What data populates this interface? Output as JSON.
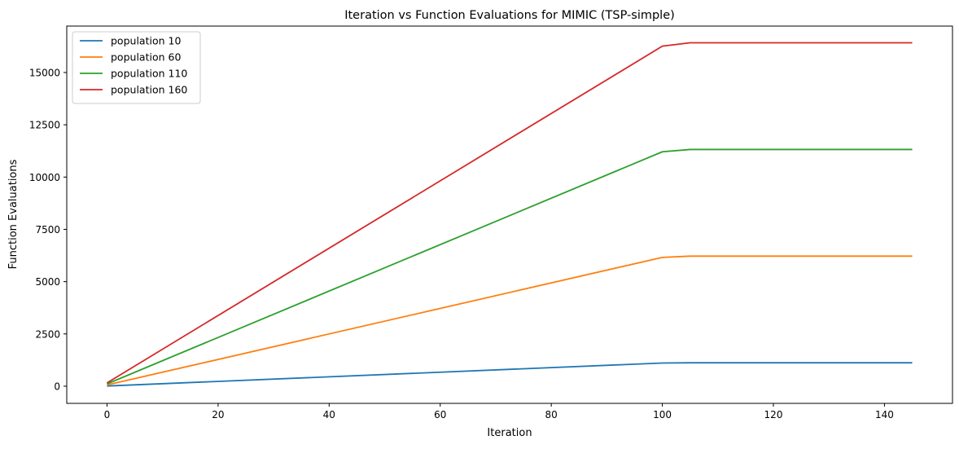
{
  "chart_data": {
    "type": "line",
    "title": "Iteration vs Function Evaluations for MIMIC (TSP-simple)",
    "xlabel": "Iteration",
    "ylabel": "Function Evaluations",
    "xlim": [
      -7.25,
      152.25
    ],
    "ylim": [
      -820,
      17220
    ],
    "xticks": [
      0,
      20,
      40,
      60,
      80,
      100,
      120,
      140
    ],
    "xtick_labels": [
      "0",
      "20",
      "40",
      "60",
      "80",
      "100",
      "120",
      "140"
    ],
    "yticks": [
      0,
      2500,
      5000,
      7500,
      10000,
      12500,
      15000
    ],
    "ytick_labels": [
      "0",
      "2500",
      "5000",
      "7500",
      "10000",
      "12500",
      "15000"
    ],
    "grid": false,
    "legend_position": "top-left",
    "series": [
      {
        "name": "population 10",
        "color": "#1f77b4",
        "x": [
          0,
          100,
          105,
          145
        ],
        "y": [
          10,
          1110,
          1120,
          1120
        ]
      },
      {
        "name": "population 60",
        "color": "#ff7f0e",
        "x": [
          0,
          100,
          105,
          145
        ],
        "y": [
          60,
          6160,
          6220,
          6220
        ]
      },
      {
        "name": "population 110",
        "color": "#2ca02c",
        "x": [
          0,
          100,
          105,
          145
        ],
        "y": [
          110,
          11210,
          11320,
          11320
        ]
      },
      {
        "name": "population 160",
        "color": "#d62728",
        "x": [
          0,
          100,
          105,
          145
        ],
        "y": [
          160,
          16260,
          16420,
          16420
        ]
      }
    ]
  }
}
